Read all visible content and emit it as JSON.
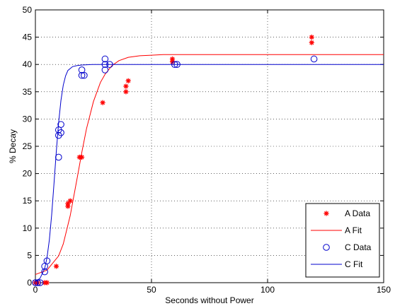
{
  "chart_data": {
    "type": "scatter",
    "xlabel": "Seconds without Power",
    "ylabel": "% Decay",
    "xlim": [
      0,
      150
    ],
    "ylim": [
      0,
      50
    ],
    "xticks": [
      "0",
      "50",
      "100",
      "150"
    ],
    "yticks": [
      "0",
      "5",
      "10",
      "15",
      "20",
      "25",
      "30",
      "35",
      "40",
      "45",
      "50"
    ],
    "grid": "dotted",
    "legend_position": "bottom-right",
    "legend": [
      "A Data",
      "A Fit",
      "C Data",
      "C Fit"
    ],
    "series": [
      {
        "name": "A Data",
        "marker": "asterisk",
        "color": "#ff0000",
        "points": [
          [
            0,
            0
          ],
          [
            1,
            0
          ],
          [
            4,
            0
          ],
          [
            5,
            0
          ],
          [
            9,
            3
          ],
          [
            14,
            14
          ],
          [
            14,
            14.5
          ],
          [
            15,
            15
          ],
          [
            19,
            23
          ],
          [
            20,
            23
          ],
          [
            29,
            33
          ],
          [
            39,
            35
          ],
          [
            39,
            36
          ],
          [
            40,
            37
          ],
          [
            59,
            40.5
          ],
          [
            59,
            41
          ],
          [
            119,
            44
          ],
          [
            119,
            45
          ]
        ]
      },
      {
        "name": "A Fit",
        "line": "solid",
        "color": "#ff0000",
        "x": [
          0,
          5,
          10,
          12,
          15,
          18,
          20,
          22,
          25,
          28,
          30,
          33,
          36,
          40,
          45,
          50,
          55,
          60,
          70,
          80,
          90,
          100,
          120,
          150
        ],
        "y": [
          1.5,
          2.3,
          4.9,
          7.1,
          12.3,
          19.2,
          23.9,
          28.2,
          33.2,
          36.7,
          38.2,
          39.8,
          40.7,
          41.3,
          41.6,
          41.7,
          41.8,
          41.8,
          41.8,
          41.8,
          41.8,
          41.8,
          41.8,
          41.8
        ]
      },
      {
        "name": "C Data",
        "marker": "circle",
        "color": "#0000cc",
        "points": [
          [
            0,
            0
          ],
          [
            1,
            0
          ],
          [
            2,
            0
          ],
          [
            4,
            2
          ],
          [
            4,
            3
          ],
          [
            5,
            4
          ],
          [
            10,
            23
          ],
          [
            10,
            27
          ],
          [
            10,
            28
          ],
          [
            11,
            27.5
          ],
          [
            11,
            29
          ],
          [
            20,
            38
          ],
          [
            20,
            39
          ],
          [
            21,
            38
          ],
          [
            30,
            39
          ],
          [
            30,
            40
          ],
          [
            30,
            41
          ],
          [
            32,
            40
          ],
          [
            60,
            40
          ],
          [
            61,
            40
          ],
          [
            120,
            41
          ]
        ]
      },
      {
        "name": "C Fit",
        "line": "solid",
        "color": "#0000cc",
        "x": [
          0,
          2,
          4,
          5,
          6,
          7,
          8,
          9,
          10,
          11,
          12,
          13,
          14,
          16,
          18,
          20,
          25,
          30,
          40,
          60,
          100,
          150
        ],
        "y": [
          0.2,
          0.8,
          2.6,
          4.6,
          7.8,
          12.4,
          18.1,
          24.0,
          29.3,
          33.4,
          36.2,
          37.9,
          38.9,
          39.6,
          39.8,
          39.9,
          40.0,
          40.0,
          40.0,
          40.0,
          40.0,
          40.0
        ]
      }
    ]
  }
}
